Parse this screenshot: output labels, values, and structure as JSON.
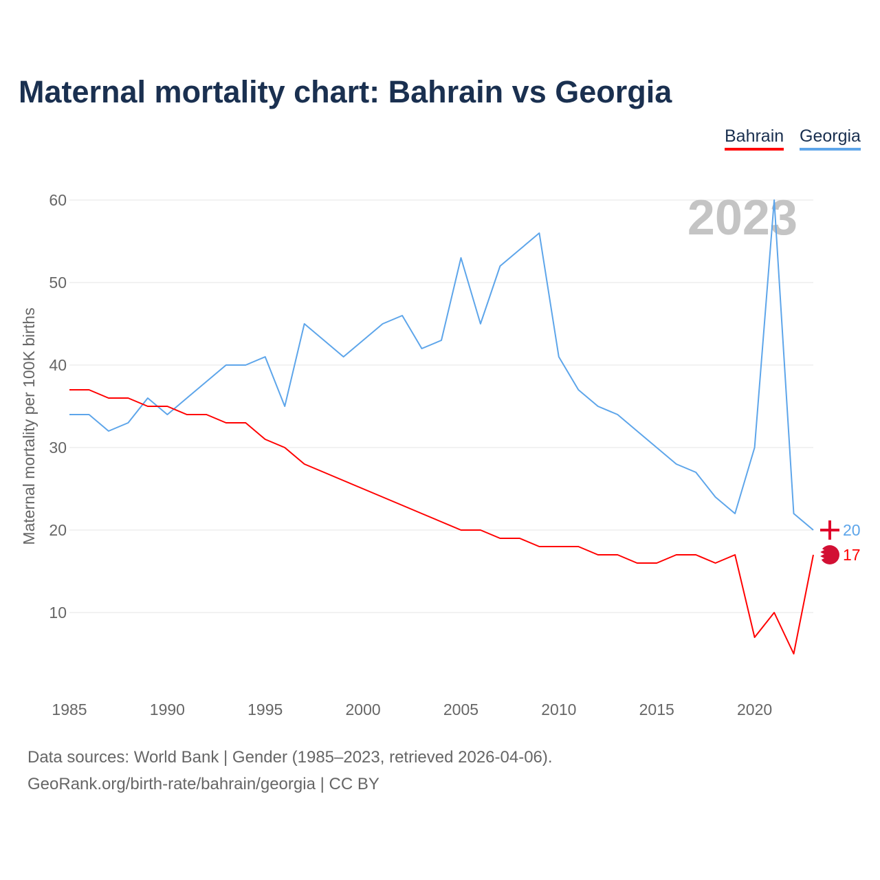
{
  "chart_data": {
    "type": "line",
    "title": "Maternal mortality chart: Bahrain vs Georgia",
    "xlabel": "",
    "ylabel": "Maternal mortality per 100K births",
    "xlim": [
      1985,
      2023
    ],
    "ylim": [
      0,
      65
    ],
    "yticks": [
      10,
      20,
      30,
      40,
      50,
      60
    ],
    "xticks": [
      1985,
      1990,
      1995,
      2000,
      2005,
      2010,
      2015,
      2020
    ],
    "year_label": "2023",
    "legend_placement": "top-right",
    "x": [
      1985,
      1986,
      1987,
      1988,
      1989,
      1990,
      1991,
      1992,
      1993,
      1994,
      1995,
      1996,
      1997,
      1998,
      1999,
      2000,
      2001,
      2002,
      2003,
      2004,
      2005,
      2006,
      2007,
      2008,
      2009,
      2010,
      2011,
      2012,
      2013,
      2014,
      2015,
      2016,
      2017,
      2018,
      2019,
      2020,
      2021,
      2022,
      2023
    ],
    "series": [
      {
        "name": "Bahrain",
        "color": "#ff0000",
        "end_label": "17",
        "values": [
          37,
          37,
          36,
          36,
          35,
          35,
          34,
          34,
          33,
          33,
          31,
          30,
          28,
          27,
          26,
          25,
          24,
          23,
          22,
          21,
          20,
          20,
          19,
          19,
          18,
          18,
          18,
          17,
          17,
          16,
          16,
          17,
          17,
          16,
          17,
          7,
          10,
          5,
          17
        ]
      },
      {
        "name": "Georgia",
        "color": "#5da5ea",
        "end_label": "20",
        "values": [
          34,
          34,
          32,
          33,
          36,
          34,
          36,
          38,
          40,
          40,
          41,
          35,
          45,
          43,
          41,
          43,
          45,
          46,
          42,
          43,
          53,
          45,
          52,
          54,
          56,
          41,
          37,
          35,
          34,
          32,
          30,
          28,
          27,
          24,
          22,
          30,
          60,
          22,
          20
        ]
      }
    ]
  },
  "footer": {
    "line1": "Data sources: World Bank | Gender (1985–2023, retrieved 2026-04-06).",
    "line2": "GeoRank.org/birth-rate/bahrain/georgia | CC BY"
  }
}
